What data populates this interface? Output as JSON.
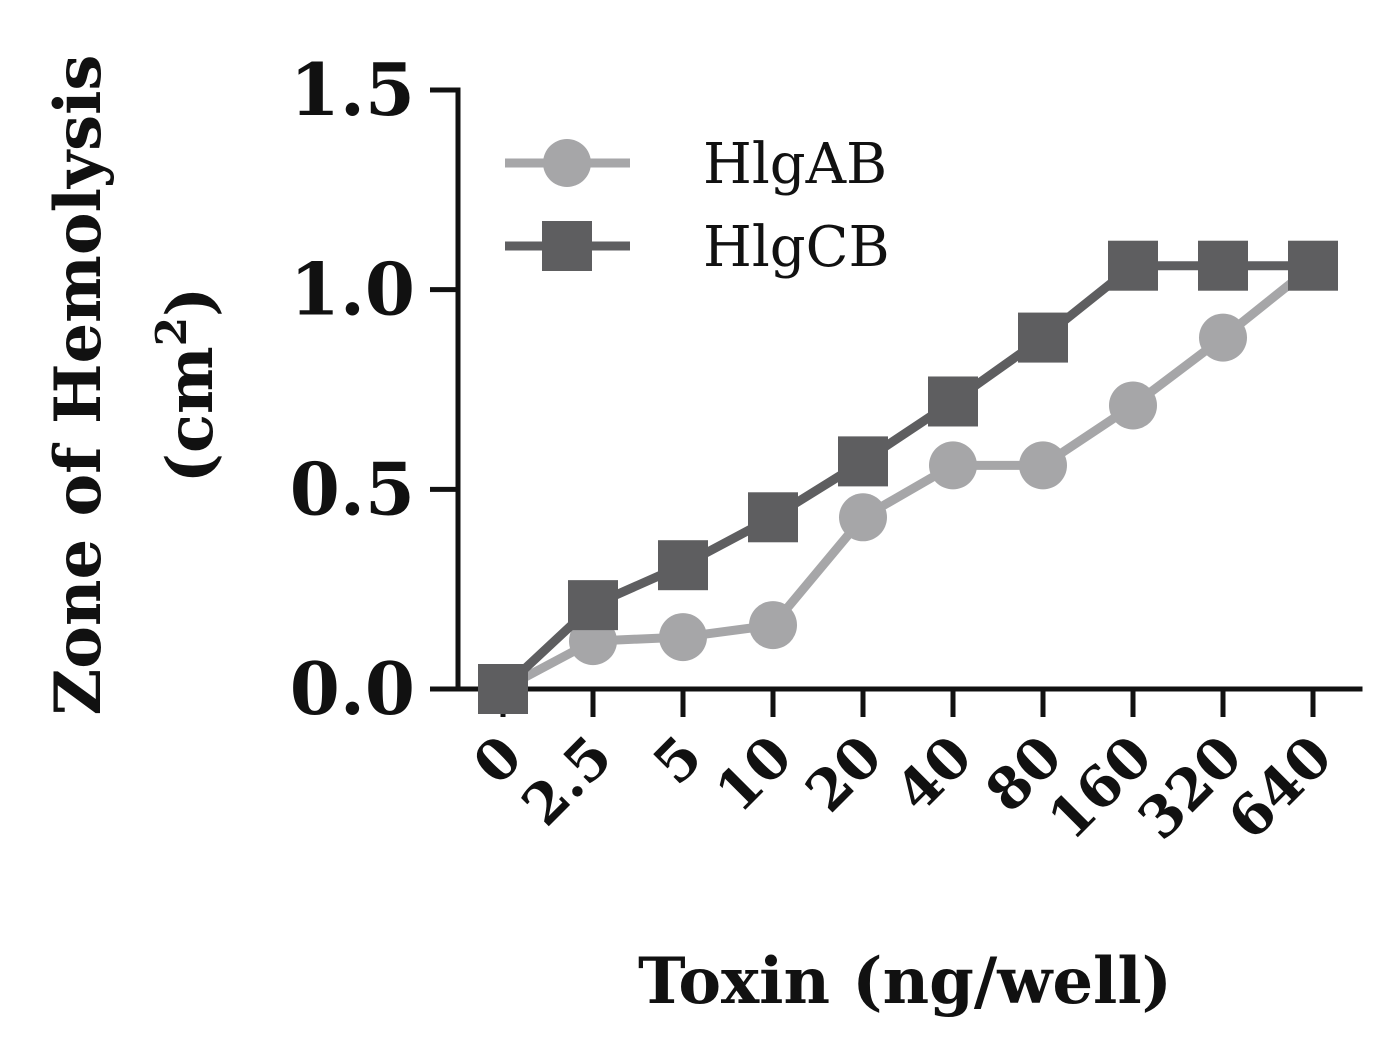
{
  "chart_data": {
    "type": "line",
    "categories": [
      "0",
      "2.5",
      "5",
      "10",
      "20",
      "40",
      "80",
      "160",
      "320",
      "640"
    ],
    "series": [
      {
        "name": "HlgAB",
        "marker": "circle",
        "color": "#a6a6a8",
        "values": [
          0.0,
          0.12,
          0.13,
          0.16,
          0.43,
          0.56,
          0.56,
          0.71,
          0.88,
          1.06
        ]
      },
      {
        "name": "HlgCB",
        "marker": "square",
        "color": "#5e5e60",
        "values": [
          0.0,
          0.21,
          0.31,
          0.43,
          0.57,
          0.72,
          0.88,
          1.06,
          1.06,
          1.06
        ]
      }
    ],
    "xlabel": "Toxin (ng/well)",
    "ylabel_line1": "Zone of Hemolysis",
    "ylabel_line2_prefix": "(cm",
    "ylabel_line2_sup": "2",
    "ylabel_line2_suffix": ")",
    "ylim": [
      0,
      1.5
    ],
    "yticks": [
      "0.0",
      "0.5",
      "1.0",
      "1.5"
    ],
    "grid": false,
    "legend_position": "top-left"
  }
}
